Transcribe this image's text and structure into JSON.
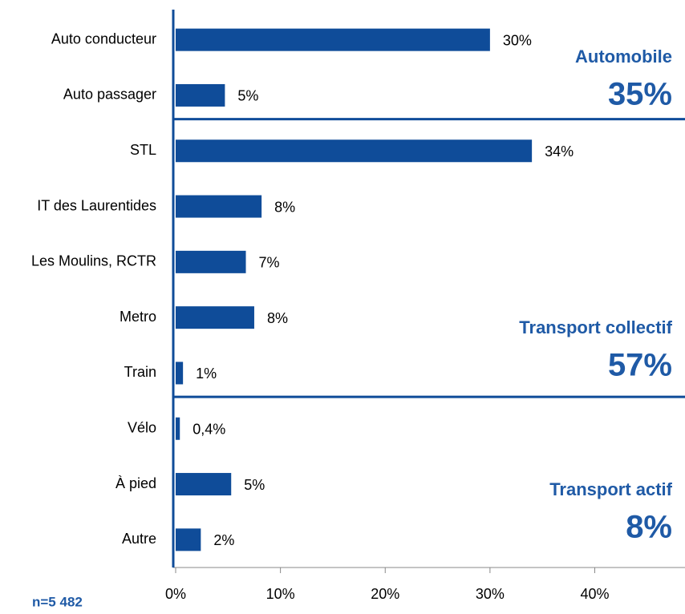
{
  "chart_data": {
    "type": "hbar",
    "categories": [
      "Auto conducteur",
      "Auto passager",
      "STL",
      "IT des Laurentides",
      "Les Moulins, RCTR",
      "Metro",
      "Train",
      "Vélo",
      "À pied",
      "Autre"
    ],
    "values": [
      30,
      4.7,
      34,
      8.2,
      6.7,
      7.5,
      0.7,
      0.4,
      5.3,
      2.4
    ],
    "value_labels": [
      "30%",
      "5%",
      "34%",
      "8%",
      "7%",
      "8%",
      "1%",
      "0,4%",
      "5%",
      "2%"
    ],
    "color": "#0f4c99",
    "xlim": [
      0,
      48
    ],
    "xticks": [
      {
        "value": 0,
        "label": "0%"
      },
      {
        "value": 10,
        "label": "10%"
      },
      {
        "value": 20,
        "label": "20%"
      },
      {
        "value": 30,
        "label": "30%"
      },
      {
        "value": 40,
        "label": "40%"
      }
    ],
    "groups": [
      {
        "name": "Automobile",
        "share": 35,
        "share_label": "35%"
      },
      {
        "name": "Transport collectif",
        "share": 57,
        "share_label": "57%"
      },
      {
        "name": "Transport actif",
        "share": 8,
        "share_label": "8%"
      }
    ],
    "note": "n=5 482"
  }
}
